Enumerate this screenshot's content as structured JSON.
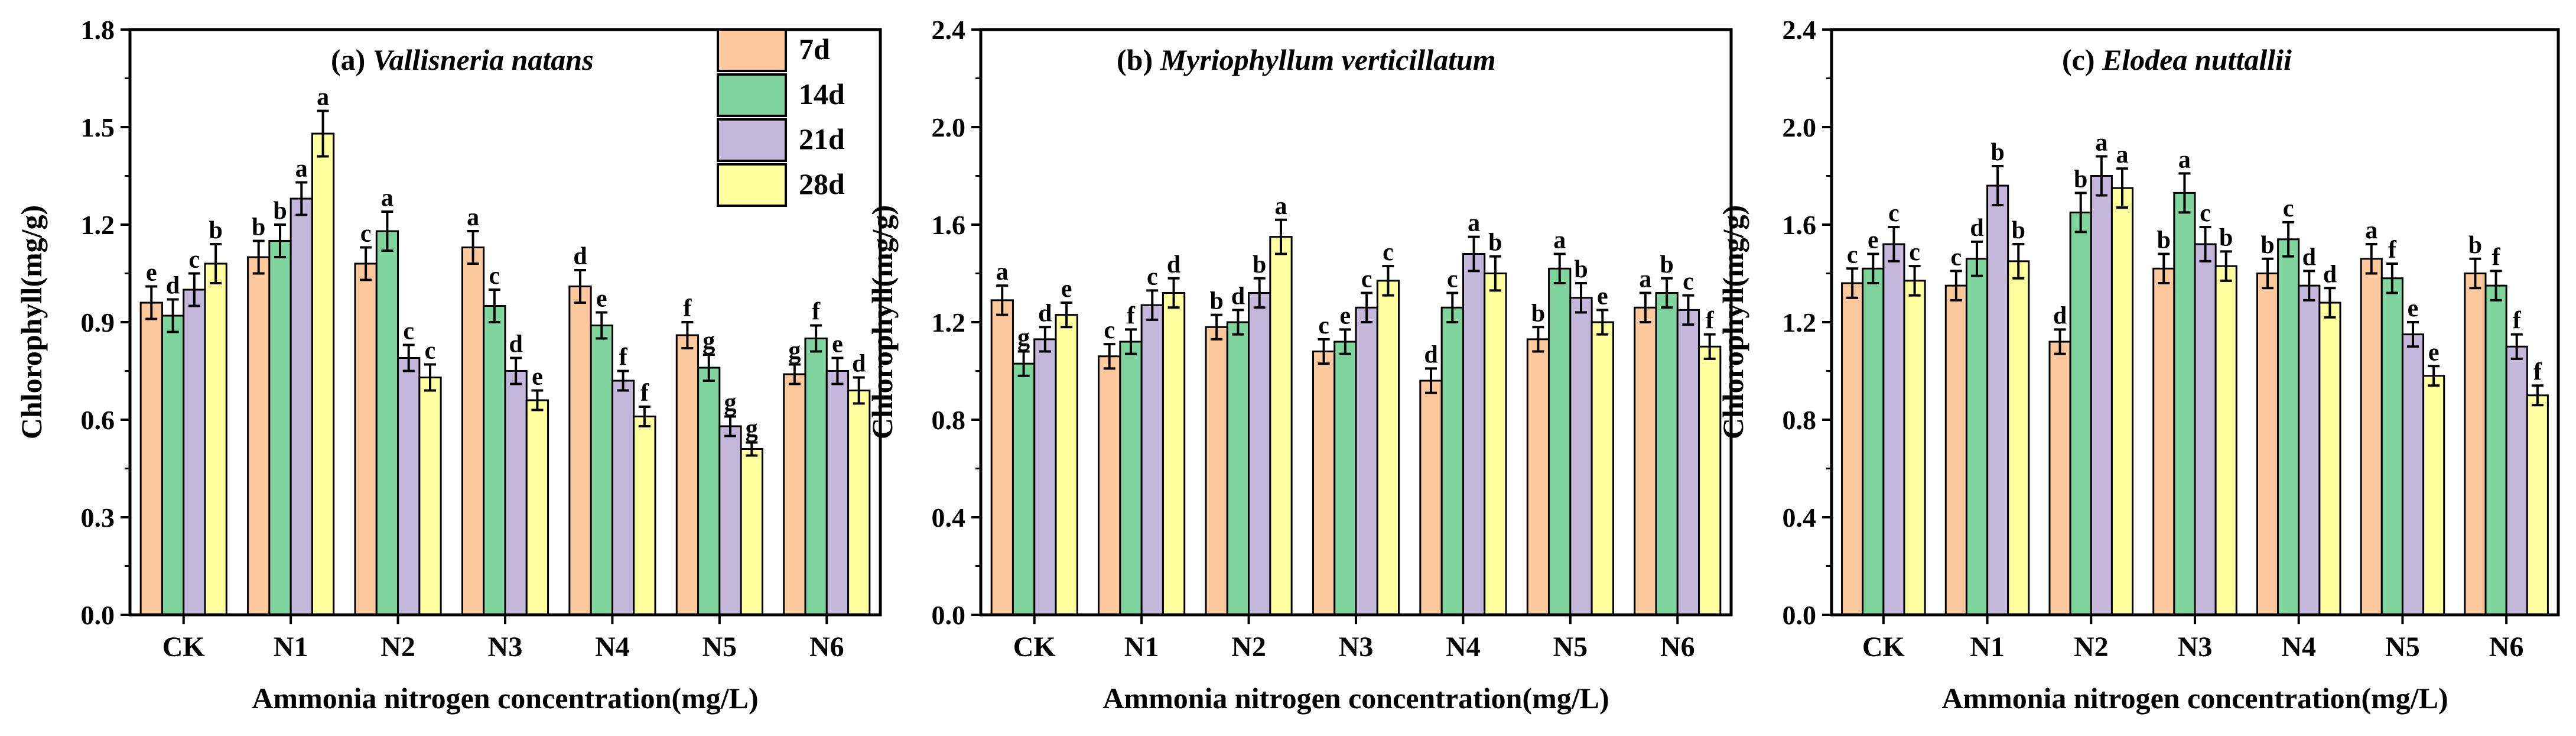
{
  "colors": {
    "7d": "#fdc89b",
    "14d": "#7fd59d",
    "21d": "#c5b7db",
    "28d": "#ffff9f",
    "axis": "#000000"
  },
  "chart_data": [
    {
      "type": "bar",
      "title_prefix": "(a)",
      "title_species": "Vallisneria natans",
      "xlabel": "Ammonia nitrogen concentration(mg/L)",
      "ylabel": "Chlorophyll(mg/g)",
      "ylim": [
        0,
        1.8
      ],
      "yticks": [
        "0.0",
        "0.3",
        "0.6",
        "0.9",
        "1.2",
        "1.5",
        "1.8"
      ],
      "categories": [
        "CK",
        "N1",
        "N2",
        "N3",
        "N4",
        "N5",
        "N6"
      ],
      "legend": [
        "7d",
        "14d",
        "21d",
        "28d"
      ],
      "series": [
        {
          "name": "7d",
          "values": [
            0.96,
            1.1,
            1.08,
            1.13,
            1.01,
            0.86,
            0.74
          ],
          "errors": [
            0.05,
            0.05,
            0.05,
            0.05,
            0.05,
            0.04,
            0.03
          ],
          "labels": [
            "e",
            "b",
            "c",
            "a",
            "d",
            "f",
            "g"
          ]
        },
        {
          "name": "14d",
          "values": [
            0.92,
            1.15,
            1.18,
            0.95,
            0.89,
            0.76,
            0.85
          ],
          "errors": [
            0.05,
            0.05,
            0.06,
            0.05,
            0.04,
            0.04,
            0.04
          ],
          "labels": [
            "d",
            "b",
            "a",
            "c",
            "e",
            "g",
            "f"
          ]
        },
        {
          "name": "21d",
          "values": [
            1.0,
            1.28,
            0.79,
            0.75,
            0.72,
            0.58,
            0.75
          ],
          "errors": [
            0.05,
            0.05,
            0.04,
            0.04,
            0.03,
            0.03,
            0.04
          ],
          "labels": [
            "c",
            "a",
            "c",
            "d",
            "f",
            "g",
            "e"
          ]
        },
        {
          "name": "28d",
          "values": [
            1.08,
            1.48,
            0.73,
            0.66,
            0.61,
            0.51,
            0.69
          ],
          "errors": [
            0.06,
            0.07,
            0.04,
            0.03,
            0.03,
            0.02,
            0.04
          ],
          "labels": [
            "b",
            "a",
            "c",
            "e",
            "f",
            "g",
            "d"
          ]
        }
      ]
    },
    {
      "type": "bar",
      "title_prefix": "(b)",
      "title_species": "Myriophyllum verticillatum",
      "xlabel": "Ammonia nitrogen concentration(mg/L)",
      "ylabel": "Chlorophyll(mg/g)",
      "ylim": [
        0,
        2.4
      ],
      "yticks": [
        "0.0",
        "0.4",
        "0.8",
        "1.2",
        "1.6",
        "2.0",
        "2.4"
      ],
      "categories": [
        "CK",
        "N1",
        "N2",
        "N3",
        "N4",
        "N5",
        "N6"
      ],
      "series": [
        {
          "name": "7d",
          "values": [
            1.29,
            1.06,
            1.18,
            1.08,
            0.96,
            1.13,
            1.26
          ],
          "errors": [
            0.06,
            0.05,
            0.05,
            0.05,
            0.05,
            0.05,
            0.06
          ],
          "labels": [
            "a",
            "c",
            "b",
            "c",
            "d",
            "b",
            "a"
          ]
        },
        {
          "name": "14d",
          "values": [
            1.03,
            1.12,
            1.2,
            1.12,
            1.26,
            1.42,
            1.32
          ],
          "errors": [
            0.05,
            0.05,
            0.05,
            0.05,
            0.06,
            0.06,
            0.06
          ],
          "labels": [
            "g",
            "f",
            "d",
            "e",
            "c",
            "a",
            "b"
          ]
        },
        {
          "name": "21d",
          "values": [
            1.13,
            1.27,
            1.32,
            1.26,
            1.48,
            1.3,
            1.25
          ],
          "errors": [
            0.05,
            0.06,
            0.06,
            0.06,
            0.07,
            0.06,
            0.06
          ],
          "labels": [
            "d",
            "c",
            "b",
            "c",
            "a",
            "b",
            "c"
          ]
        },
        {
          "name": "28d",
          "values": [
            1.23,
            1.32,
            1.55,
            1.37,
            1.4,
            1.2,
            1.1
          ],
          "errors": [
            0.05,
            0.06,
            0.07,
            0.06,
            0.07,
            0.05,
            0.05
          ],
          "labels": [
            "e",
            "d",
            "a",
            "c",
            "b",
            "e",
            "f"
          ]
        }
      ]
    },
    {
      "type": "bar",
      "title_prefix": "(c)",
      "title_species": "Elodea nuttallii",
      "xlabel": "Ammonia nitrogen concentration(mg/L)",
      "ylabel": "Chlorophyll(mg/g)",
      "ylim": [
        0,
        2.4
      ],
      "yticks": [
        "0.0",
        "0.4",
        "0.8",
        "1.2",
        "1.6",
        "2.0",
        "2.4"
      ],
      "categories": [
        "CK",
        "N1",
        "N2",
        "N3",
        "N4",
        "N5",
        "N6"
      ],
      "series": [
        {
          "name": "7d",
          "values": [
            1.36,
            1.35,
            1.12,
            1.42,
            1.4,
            1.46,
            1.4
          ],
          "errors": [
            0.06,
            0.06,
            0.05,
            0.06,
            0.06,
            0.06,
            0.06
          ],
          "labels": [
            "c",
            "c",
            "d",
            "b",
            "b",
            "a",
            "b"
          ]
        },
        {
          "name": "14d",
          "values": [
            1.42,
            1.46,
            1.65,
            1.73,
            1.54,
            1.38,
            1.35
          ],
          "errors": [
            0.06,
            0.07,
            0.08,
            0.08,
            0.07,
            0.06,
            0.06
          ],
          "labels": [
            "e",
            "d",
            "b",
            "a",
            "c",
            "f",
            "f"
          ]
        },
        {
          "name": "21d",
          "values": [
            1.52,
            1.76,
            1.8,
            1.52,
            1.35,
            1.15,
            1.1
          ],
          "errors": [
            0.07,
            0.08,
            0.08,
            0.07,
            0.06,
            0.05,
            0.05
          ],
          "labels": [
            "c",
            "b",
            "a",
            "c",
            "d",
            "e",
            "f"
          ]
        },
        {
          "name": "28d",
          "values": [
            1.37,
            1.45,
            1.75,
            1.43,
            1.28,
            0.98,
            0.9
          ],
          "errors": [
            0.06,
            0.07,
            0.08,
            0.06,
            0.06,
            0.04,
            0.04
          ],
          "labels": [
            "c",
            "b",
            "a",
            "b",
            "d",
            "e",
            "f"
          ]
        }
      ]
    }
  ]
}
